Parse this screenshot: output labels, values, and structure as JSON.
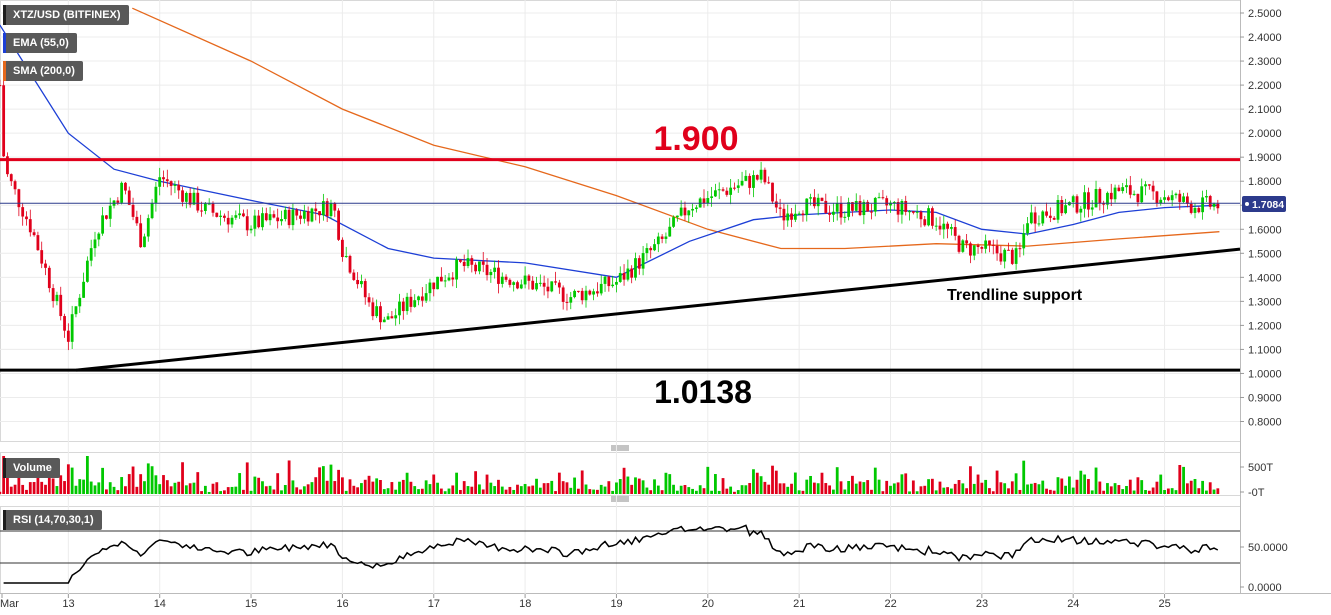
{
  "legend": {
    "symbol": "XTZ/USD (BITFINEX)",
    "ema": "EMA (55,0)",
    "sma": "SMA (200,0)",
    "volume": "Volume",
    "rsi": "RSI (14,70,30,1)"
  },
  "colors": {
    "up": "#00c800",
    "down": "#e0001b",
    "ema": "#1d3fd6",
    "sma": "#e5681c",
    "resistance": "#e0001b",
    "support": "#000000",
    "current_price": "#2c3a8c"
  },
  "annotations": {
    "resistance_value": "1.900",
    "support_value": "1.0138",
    "trendline_label": "Trendline support"
  },
  "chart_data": [
    {
      "type": "candlestick",
      "title": "XTZ/USD (BITFINEX)",
      "x_ticks": [
        "Mar",
        "13",
        "14",
        "15",
        "16",
        "17",
        "18",
        "19",
        "20",
        "21",
        "22",
        "23",
        "24",
        "25"
      ],
      "y_ticks": [
        "2.5000",
        "2.4000",
        "2.3000",
        "2.2000",
        "2.1000",
        "2.0000",
        "1.9000",
        "1.8000",
        "1.7000",
        "1.6000",
        "1.5000",
        "1.4000",
        "1.3000",
        "1.2000",
        "1.1000",
        "1.0000",
        "0.9000",
        "0.8000"
      ],
      "ylim": [
        0.75,
        2.52
      ],
      "current_price": "1.7084",
      "horizontal_levels": [
        1.89,
        1.0138
      ],
      "trendline": {
        "from": [
          "13",
          1.0138
        ],
        "to": [
          "25",
          1.485
        ]
      },
      "price_path": [
        [
          "Mar",
          2.2
        ],
        [
          "12.3",
          1.85
        ],
        [
          "12.6",
          1.6
        ],
        [
          "13",
          1.15
        ],
        [
          "13.3",
          1.6
        ],
        [
          "13.6",
          1.78
        ],
        [
          "13.8",
          1.55
        ],
        [
          "14",
          1.82
        ],
        [
          "14.5",
          1.68
        ],
        [
          "15",
          1.62
        ],
        [
          "15.5",
          1.66
        ],
        [
          "15.9",
          1.7
        ],
        [
          "16",
          1.52
        ],
        [
          "16.3",
          1.28
        ],
        [
          "16.5",
          1.22
        ],
        [
          "16.8",
          1.32
        ],
        [
          "17",
          1.38
        ],
        [
          "17.3",
          1.45
        ],
        [
          "17.6",
          1.42
        ],
        [
          "18",
          1.38
        ],
        [
          "18.5",
          1.32
        ],
        [
          "19",
          1.38
        ],
        [
          "19.5",
          1.55
        ],
        [
          "19.8",
          1.7
        ],
        [
          "20.3",
          1.78
        ],
        [
          "20.6",
          1.82
        ],
        [
          "20.8",
          1.65
        ],
        [
          "21",
          1.7
        ],
        [
          "21.5",
          1.68
        ],
        [
          "22",
          1.7
        ],
        [
          "22.5",
          1.64
        ],
        [
          "22.8",
          1.52
        ],
        [
          "23",
          1.52
        ],
        [
          "23.4",
          1.48
        ],
        [
          "23.5",
          1.65
        ],
        [
          "24",
          1.7
        ],
        [
          "24.5",
          1.76
        ],
        [
          "25",
          1.74
        ],
        [
          "25.3",
          1.7
        ],
        [
          "25.6",
          1.7
        ]
      ],
      "ema_path": [
        [
          "Mar",
          2.45
        ],
        [
          "13",
          2.0
        ],
        [
          "13.5",
          1.85
        ],
        [
          "14",
          1.8
        ],
        [
          "15",
          1.72
        ],
        [
          "15.8",
          1.66
        ],
        [
          "16.5",
          1.52
        ],
        [
          "17",
          1.48
        ],
        [
          "18",
          1.46
        ],
        [
          "19",
          1.4
        ],
        [
          "19.8",
          1.55
        ],
        [
          "20.5",
          1.64
        ],
        [
          "21",
          1.66
        ],
        [
          "22",
          1.68
        ],
        [
          "22.5",
          1.67
        ],
        [
          "23",
          1.6
        ],
        [
          "23.5",
          1.58
        ],
        [
          "24",
          1.62
        ],
        [
          "24.5",
          1.67
        ],
        [
          "25",
          1.69
        ],
        [
          "25.6",
          1.7
        ]
      ],
      "sma_path": [
        [
          "13.7",
          2.52
        ],
        [
          "15",
          2.3
        ],
        [
          "16",
          2.1
        ],
        [
          "17",
          1.95
        ],
        [
          "18",
          1.86
        ],
        [
          "19",
          1.74
        ],
        [
          "20",
          1.6
        ],
        [
          "20.8",
          1.52
        ],
        [
          "21.5",
          1.52
        ],
        [
          "22.5",
          1.54
        ],
        [
          "23.5",
          1.53
        ],
        [
          "24.5",
          1.56
        ],
        [
          "25.6",
          1.59
        ]
      ]
    },
    {
      "type": "bar",
      "title": "Volume",
      "y_ticks": [
        "500T",
        "-0T"
      ]
    },
    {
      "type": "line",
      "title": "RSI (14,70,30,1)",
      "y_ticks": [
        "50.0000",
        "0.0000"
      ],
      "levels": [
        70,
        30
      ]
    }
  ]
}
